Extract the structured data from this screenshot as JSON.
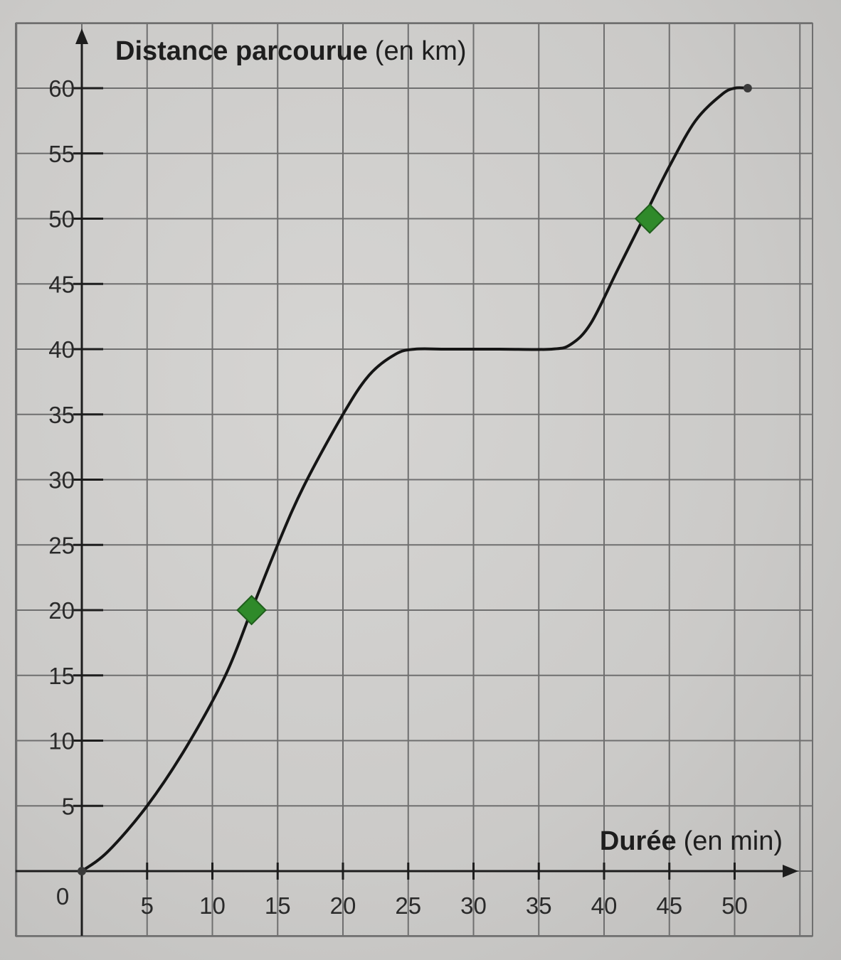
{
  "chart_data": {
    "type": "line",
    "title": "",
    "xlabel": {
      "main": "Durée",
      "unit": "(en min)"
    },
    "ylabel": {
      "main": "Distance parcourue",
      "unit": "(en km)"
    },
    "origin_label": "0",
    "xlim": [
      0,
      55
    ],
    "ylim": [
      -5,
      65
    ],
    "x_ticks": [
      5,
      10,
      15,
      20,
      25,
      30,
      35,
      40,
      45,
      50
    ],
    "y_ticks": [
      5,
      10,
      15,
      20,
      25,
      30,
      35,
      40,
      45,
      50,
      55,
      60
    ],
    "grid": true,
    "series": [
      {
        "x": [
          0,
          2,
          5,
          8,
          11,
          13,
          15,
          17,
          20,
          22,
          24,
          25.5,
          28,
          32,
          36,
          37.5,
          39,
          41,
          43,
          45,
          47,
          49,
          50,
          51
        ],
        "y": [
          0,
          1.5,
          5,
          9.5,
          15,
          20,
          25,
          29.5,
          35,
          38,
          39.6,
          40,
          40,
          40,
          40,
          40.4,
          42,
          46,
          50,
          54,
          57.5,
          59.5,
          60,
          60
        ],
        "color": "#151515"
      }
    ],
    "markers": [
      {
        "x": 13,
        "y": 20,
        "shape": "diamond",
        "color": "#2f8a2a"
      },
      {
        "x": 43.5,
        "y": 50,
        "shape": "diamond",
        "color": "#2f8a2a"
      }
    ],
    "endpoints": [
      {
        "x": 0,
        "y": 0
      },
      {
        "x": 51,
        "y": 60
      }
    ]
  }
}
